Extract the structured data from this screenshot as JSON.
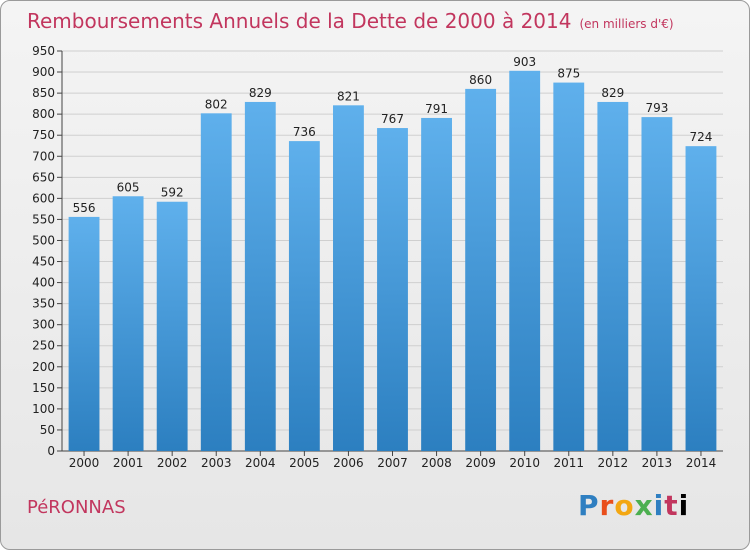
{
  "header": {
    "title": "Remboursements Annuels de la Dette de 2000 à 2014",
    "unit": "(en milliers d'€)"
  },
  "footer": {
    "city": "PéRONNAS",
    "brand": "Proxiti"
  },
  "colors": {
    "title": "#c2365e",
    "bar_top": "#5fb0ec",
    "bar_bottom": "#2c7fc0",
    "grid": "#cfcfcf"
  },
  "chart_data": {
    "type": "bar",
    "title": "Remboursements Annuels de la Dette de 2000 à 2014",
    "xlabel": "",
    "ylabel": "",
    "categories": [
      "2000",
      "2001",
      "2002",
      "2003",
      "2004",
      "2005",
      "2006",
      "2007",
      "2008",
      "2009",
      "2010",
      "2011",
      "2012",
      "2013",
      "2014"
    ],
    "values": [
      556,
      605,
      592,
      802,
      829,
      736,
      821,
      767,
      791,
      860,
      903,
      875,
      829,
      793,
      724
    ],
    "ylim": [
      0,
      950
    ],
    "ytick_step": 50,
    "grid": true,
    "legend": "none"
  }
}
